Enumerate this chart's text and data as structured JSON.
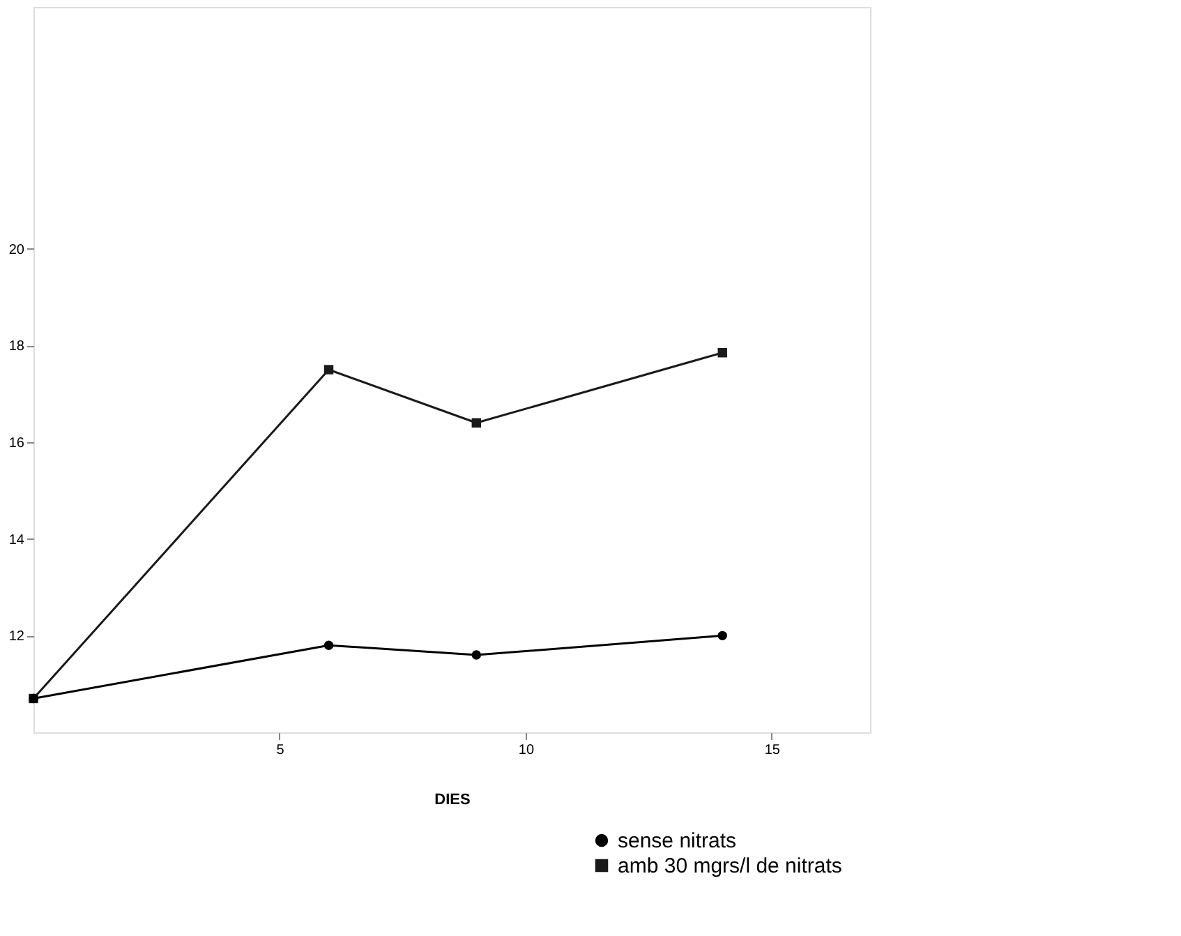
{
  "chart_data": {
    "type": "line",
    "xlabel": "DIES",
    "series": [
      {
        "name": "sense nitrats",
        "color": "#000000",
        "marker": "circle",
        "x": [
          0,
          6,
          9,
          14
        ],
        "values": [
          10.7,
          11.8,
          11.6,
          12.0
        ]
      },
      {
        "name": "amb 30 mgrs/l de nitrats",
        "color": "#1a1a1a",
        "marker": "square",
        "x": [
          0,
          6,
          9,
          14
        ],
        "values": [
          10.7,
          17.5,
          16.4,
          17.85
        ]
      }
    ],
    "xlim": [
      0,
      17
    ],
    "xticks": [
      5,
      10,
      15
    ],
    "ylim": [
      10,
      25
    ],
    "yticks": [
      12,
      14,
      16,
      18,
      20
    ],
    "grid": false,
    "legend": "bottom right",
    "line_style": "solid"
  }
}
